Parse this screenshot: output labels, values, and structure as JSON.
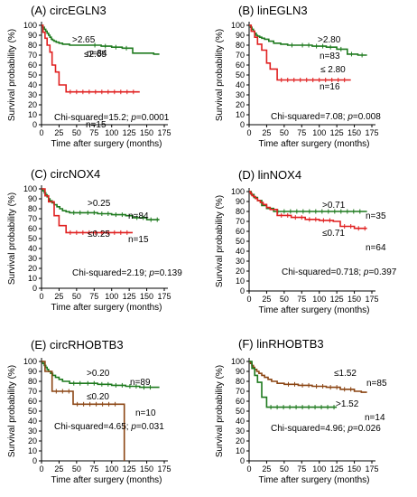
{
  "chart_data": [
    {
      "type": "line",
      "step": true,
      "title": "(A) circEGLN3",
      "xlabel": "Time after surgery (months)",
      "ylabel": "Survival probability (%)",
      "xlim": [
        0,
        175
      ],
      "ylim": [
        0,
        100
      ],
      "xticks": [
        "0",
        "25",
        "50",
        "75",
        "100",
        "125",
        "150",
        "175"
      ],
      "yticks": [
        "0",
        "10",
        "20",
        "30",
        "40",
        "50",
        "60",
        "70",
        "80",
        "90",
        "100"
      ],
      "stat_prefix": "Chi-squared=15.2; ",
      "stat_p": "p",
      "stat_suffix": "=0.0001",
      "series": [
        {
          "name": ">2.65",
          "n": "n=84",
          "color": "#1e7a1e",
          "x": [
            0,
            2,
            4,
            6,
            8,
            10,
            12,
            14,
            16,
            18,
            21,
            25,
            30,
            40,
            50,
            60,
            70,
            85,
            100,
            115,
            130,
            140,
            150,
            160,
            168
          ],
          "y": [
            100,
            98,
            96,
            94,
            92,
            90,
            88,
            86,
            85,
            84,
            83,
            82,
            81,
            80,
            80,
            80,
            80,
            79,
            78,
            77,
            72,
            72,
            72,
            71,
            71
          ]
        },
        {
          "name": "≤2.65",
          "n": "n=15",
          "color": "#e02020",
          "x": [
            0,
            2,
            5,
            8,
            12,
            15,
            20,
            25,
            35,
            140
          ],
          "y": [
            100,
            93,
            87,
            80,
            73,
            60,
            53,
            40,
            33,
            33
          ]
        }
      ]
    },
    {
      "type": "line",
      "step": true,
      "title": "(B) linEGLN3",
      "xlabel": "Time after surgery (months)",
      "ylabel": "Survival probability (%)",
      "xlim": [
        0,
        175
      ],
      "ylim": [
        0,
        100
      ],
      "xticks": [
        "0",
        "25",
        "50",
        "75",
        "100",
        "125",
        "150",
        "175"
      ],
      "yticks": [
        "0",
        "10",
        "20",
        "30",
        "40",
        "50",
        "60",
        "70",
        "80",
        "90",
        "100"
      ],
      "stat_prefix": "Chi-squared=7.08; ",
      "stat_p": "p",
      "stat_suffix": "=0.008",
      "series": [
        {
          "name": ">2.80",
          "n": "n=83",
          "color": "#1e7a1e",
          "x": [
            0,
            2,
            4,
            6,
            8,
            10,
            12,
            15,
            18,
            22,
            28,
            35,
            45,
            55,
            70,
            90,
            110,
            125,
            140,
            155,
            168
          ],
          "y": [
            100,
            98,
            96,
            94,
            92,
            90,
            89,
            88,
            87,
            86,
            84,
            82,
            81,
            80,
            80,
            79,
            78,
            76,
            71,
            70,
            70
          ]
        },
        {
          "name": "≤ 2.80",
          "n": "n=16",
          "color": "#e02020",
          "x": [
            0,
            3,
            8,
            12,
            18,
            25,
            30,
            40,
            145
          ],
          "y": [
            100,
            94,
            88,
            81,
            75,
            62,
            56,
            45,
            45
          ]
        }
      ]
    },
    {
      "type": "line",
      "step": true,
      "title": "(C) circNOX4",
      "xlabel": "Time after surgery (months)",
      "ylabel": "Survival probability (%)",
      "xlim": [
        0,
        175
      ],
      "ylim": [
        0,
        100
      ],
      "xticks": [
        "0",
        "25",
        "50",
        "75",
        "100",
        "125",
        "150",
        "175"
      ],
      "yticks": [
        "0",
        "10",
        "20",
        "30",
        "40",
        "50",
        "60",
        "70",
        "80",
        "90",
        "100"
      ],
      "stat_prefix": "Chi-squared=2.19; ",
      "stat_p": "p",
      "stat_suffix": "=0.139",
      "series": [
        {
          "name": ">0.25",
          "n": "n=84",
          "color": "#1e7a1e",
          "x": [
            0,
            2,
            4,
            6,
            8,
            10,
            12,
            15,
            18,
            22,
            26,
            30,
            35,
            40,
            60,
            80,
            100,
            120,
            130,
            150,
            168
          ],
          "y": [
            100,
            98,
            96,
            94,
            92,
            90,
            88,
            86,
            84,
            82,
            80,
            78,
            77,
            76,
            76,
            75,
            74,
            73,
            71,
            69,
            69
          ]
        },
        {
          "name": "≤0.25",
          "n": "n=15",
          "color": "#e02020",
          "x": [
            0,
            5,
            10,
            18,
            25,
            35,
            130
          ],
          "y": [
            100,
            93,
            87,
            73,
            63,
            56,
            56
          ]
        }
      ]
    },
    {
      "type": "line",
      "step": true,
      "title": "(D) linNOX4",
      "xlabel": "Time after surgery (months)",
      "ylabel": "Survival probability (%)",
      "xlim": [
        0,
        175
      ],
      "ylim": [
        0,
        100
      ],
      "xticks": [
        "0",
        "25",
        "50",
        "75",
        "100",
        "125",
        "150",
        "175"
      ],
      "yticks": [
        "0",
        "10",
        "20",
        "30",
        "40",
        "50",
        "60",
        "70",
        "80",
        "90",
        "100"
      ],
      "stat_prefix": "Chi-squared=0.718; ",
      "stat_p": "p",
      "stat_suffix": "=0.397",
      "series": [
        {
          "name": ">0.71",
          "n": "n=35",
          "color": "#1e7a1e",
          "x": [
            0,
            3,
            7,
            12,
            18,
            25,
            35,
            168
          ],
          "y": [
            100,
            97,
            94,
            91,
            86,
            83,
            80,
            80
          ]
        },
        {
          "name": "≤0.71",
          "n": "n=64",
          "color": "#e02020",
          "x": [
            0,
            2,
            4,
            6,
            9,
            12,
            16,
            20,
            25,
            30,
            40,
            60,
            80,
            100,
            120,
            130,
            150,
            168
          ],
          "y": [
            100,
            98,
            96,
            95,
            93,
            91,
            89,
            87,
            84,
            82,
            76,
            74,
            72,
            71,
            70,
            65,
            63,
            63
          ]
        }
      ]
    },
    {
      "type": "line",
      "step": true,
      "title": "(E) circRHOBTB3",
      "xlabel": "Time after surgery (months)",
      "ylabel": "Survival probability (%)",
      "xlim": [
        0,
        175
      ],
      "ylim": [
        0,
        100
      ],
      "xticks": [
        "0",
        "25",
        "50",
        "75",
        "100",
        "125",
        "150",
        "175"
      ],
      "yticks": [
        "0",
        "10",
        "20",
        "30",
        "40",
        "50",
        "60",
        "70",
        "80",
        "90",
        "100"
      ],
      "stat_prefix": "Chi-squared=4.65; ",
      "stat_p": "p",
      "stat_suffix": "=0.031",
      "series": [
        {
          "name": ">0.20",
          "n": "n=89",
          "color": "#1e7a1e",
          "x": [
            0,
            2,
            4,
            6,
            8,
            10,
            13,
            16,
            20,
            25,
            30,
            40,
            60,
            80,
            100,
            120,
            140,
            160,
            168
          ],
          "y": [
            100,
            98,
            96,
            94,
            92,
            90,
            88,
            86,
            84,
            82,
            80,
            78,
            78,
            77,
            76,
            75,
            74,
            74,
            74
          ]
        },
        {
          "name": "≤0.20",
          "n": "n=10",
          "color": "#8b4513",
          "x": [
            0,
            5,
            15,
            45,
            115,
            118
          ],
          "y": [
            100,
            90,
            70,
            57,
            57,
            0
          ]
        }
      ]
    },
    {
      "type": "line",
      "step": true,
      "title": "(F) linRHOBTB3",
      "xlabel": "Time after surgery (months)",
      "ylabel": "Survival probability (%)",
      "xlim": [
        0,
        175
      ],
      "ylim": [
        0,
        100
      ],
      "xticks": [
        "0",
        "25",
        "50",
        "75",
        "100",
        "125",
        "150",
        "175"
      ],
      "yticks": [
        "0",
        "10",
        "20",
        "30",
        "40",
        "50",
        "60",
        "70",
        "80",
        "90",
        "100"
      ],
      "stat_prefix": "Chi-squared=4.96; ",
      "stat_p": "p",
      "stat_suffix": "=0.026",
      "series": [
        {
          "name": "≤1.52",
          "n": "n=85",
          "color": "#8b4513",
          "x": [
            0,
            2,
            4,
            6,
            8,
            11,
            14,
            18,
            22,
            27,
            32,
            40,
            50,
            70,
            90,
            110,
            130,
            150,
            160,
            168
          ],
          "y": [
            100,
            98,
            96,
            94,
            92,
            90,
            88,
            86,
            84,
            82,
            80,
            78,
            77,
            76,
            75,
            74,
            72,
            70,
            69,
            69
          ]
        },
        {
          "name": ">1.52",
          "n": "n=14",
          "color": "#1e7a1e",
          "x": [
            0,
            4,
            8,
            12,
            18,
            25,
            125
          ],
          "y": [
            100,
            93,
            86,
            79,
            64,
            54,
            54
          ]
        }
      ]
    }
  ]
}
